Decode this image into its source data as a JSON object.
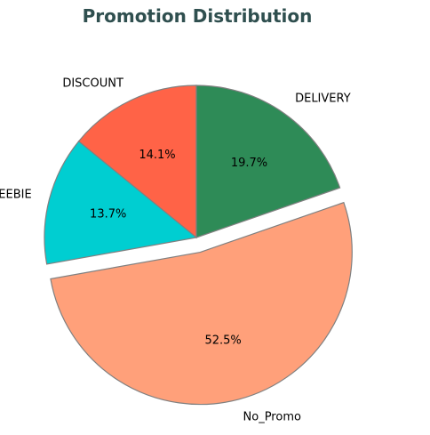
{
  "chart_data": {
    "type": "pie",
    "title": "Promotion Distribution",
    "labels": [
      "DISCOUNT",
      "FREEBIE",
      "No_Promo",
      "DELIVERY"
    ],
    "values": [
      14.1,
      13.7,
      52.5,
      19.7
    ],
    "value_labels": [
      "14.1%",
      "13.7%",
      "52.5%",
      "19.7%"
    ],
    "colors": [
      "#ff6347",
      "#00ced1",
      "#ffa07a",
      "#2e8b57"
    ],
    "explode": [
      0,
      0,
      0.1,
      0
    ],
    "start_angle_deg": 90,
    "direction": "counterclockwise",
    "edge_color": "#808080",
    "title_color": "#2f4f4f"
  }
}
